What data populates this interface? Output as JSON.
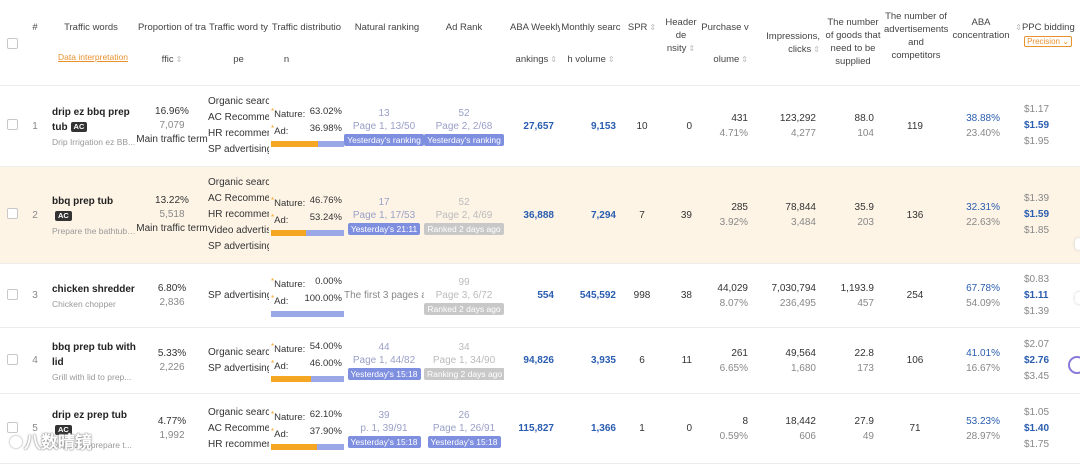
{
  "header": {
    "index": "#",
    "traffic_words": "Traffic words",
    "data_interpretation": "Data interpretation",
    "proportion_a": "Proportion of tra",
    "proportion_b": "ffic",
    "word_type_a": "Traffic word ty",
    "word_type_b": "pe",
    "distribution_a": "Traffic distributio",
    "distribution_b": "n",
    "natural_ranking": "Natural ranking",
    "ad_rank": "Ad Rank",
    "aba_weekly_a": "ABA Weekly R",
    "aba_weekly_b": "ankings",
    "monthly_a": "Monthly searc",
    "monthly_b": "h volume",
    "spr": "SPR",
    "header_density_a": "Header de",
    "header_density_b": "nsity",
    "purchase_a": "Purchase v",
    "purchase_b": "olume",
    "impressions": "Impressions, clicks",
    "num_goods": "The number of goods that need to be supplied",
    "num_ads": "The number of advertisements and competitors",
    "aba_conc": "ABA concentration",
    "ppc": "PPC bidding",
    "precision": "Precision"
  },
  "rows": [
    {
      "n": "1",
      "kw_line1": "drip ez bbq prep",
      "kw_line2": "tub",
      "ac": "AC",
      "sub": "Drip Irrigation ez BB...",
      "pct": "16.96%",
      "traffic": "7,079",
      "main": "Main traffic term",
      "types": [
        "Organic search",
        "AC Recommend",
        "HR recommend",
        "SP advertising"
      ],
      "nat_pct": "63.02%",
      "ad_pct": "36.98%",
      "nat_frac": 0.6302,
      "nr_top": "13",
      "nr_page": "Page 1, 13/50",
      "nr_tag": "Yesterday's ranking",
      "nr_tag_color": "blue",
      "ar_top": "52",
      "ar_page": "Page 2, 2/68",
      "ar_tag": "Yesterday's ranking",
      "ar_tag_color": "blue",
      "ar_muted": false,
      "aba": "27,657",
      "monthly": "9,153",
      "spr": "10",
      "header_density": "0",
      "purchase": "431",
      "purchase_pct": "4.71%",
      "impressions": "123,292",
      "clicks": "4,277",
      "goods_a": "88.0",
      "goods_b": "104",
      "ads": "119",
      "conc_a": "38.88%",
      "conc_b": "23.40%",
      "ppc": [
        "$1.17",
        "$1.59",
        "$1.95"
      ]
    },
    {
      "n": "2",
      "kw_line1": "bbq prep tub",
      "kw_line2": "",
      "ac": "AC",
      "sub": "Prepare the bathtub ...",
      "pct": "13.22%",
      "traffic": "5,518",
      "main": "Main traffic term",
      "types": [
        "Organic search",
        "AC Recommend",
        "HR recommend",
        "Video advertising",
        "SP advertising"
      ],
      "nat_pct": "46.76%",
      "ad_pct": "53.24%",
      "nat_frac": 0.4676,
      "nr_top": "17",
      "nr_page": "Page 1, 17/53",
      "nr_tag": "Yesterday's 21:11",
      "nr_tag_color": "blue",
      "ar_top": "52",
      "ar_page": "Page 2, 4/69",
      "ar_tag": "Ranked 2 days ago",
      "ar_tag_color": "gray",
      "ar_muted": true,
      "aba": "36,888",
      "monthly": "7,294",
      "spr": "7",
      "header_density": "39",
      "purchase": "285",
      "purchase_pct": "3.92%",
      "impressions": "78,844",
      "clicks": "3,484",
      "goods_a": "35.9",
      "goods_b": "203",
      "ads": "136",
      "conc_a": "32.31%",
      "conc_b": "22.63%",
      "ppc": [
        "$1.39",
        "$1.59",
        "$1.85"
      ]
    },
    {
      "n": "3",
      "kw_line1": "chicken shredder",
      "kw_line2": "",
      "ac": "",
      "sub": "Chicken chopper",
      "pct": "6.80%",
      "traffic": "2,836",
      "main": "",
      "types": [
        "SP advertising"
      ],
      "nat_pct": "0.00%",
      "ad_pct": "100.00%",
      "nat_frac": 0.0,
      "nr_top": "",
      "nr_page": "The first 3 pages are",
      "nr_tag": "",
      "nr_tag_color": "gray",
      "ar_top": "99",
      "ar_page": "Page 3, 6/72",
      "ar_tag": "Ranked 2 days ago",
      "ar_tag_color": "gray",
      "ar_muted": true,
      "aba": "554",
      "monthly": "545,592",
      "spr": "998",
      "header_density": "38",
      "purchase": "44,029",
      "purchase_pct": "8.07%",
      "impressions": "7,030,794",
      "clicks": "236,495",
      "goods_a": "1,193.9",
      "goods_b": "457",
      "ads": "254",
      "conc_a": "67.78%",
      "conc_b": "54.09%",
      "ppc": [
        "$0.83",
        "$1.11",
        "$1.39"
      ]
    },
    {
      "n": "4",
      "kw_line1": "bbq prep tub with",
      "kw_line2": "lid",
      "ac": "",
      "sub": "Grill with lid to prep...",
      "pct": "5.33%",
      "traffic": "2,226",
      "main": "",
      "types": [
        "Organic search",
        "SP advertising"
      ],
      "nat_pct": "54.00%",
      "ad_pct": "46.00%",
      "nat_frac": 0.54,
      "nr_top": "44",
      "nr_page": "Page 1, 44/82",
      "nr_tag": "Yesterday's 15:18",
      "nr_tag_color": "blue",
      "ar_top": "34",
      "ar_page": "Page 1, 34/90",
      "ar_tag": "Ranking 2 days ago",
      "ar_tag_color": "gray",
      "ar_muted": true,
      "aba": "94,826",
      "monthly": "3,935",
      "spr": "6",
      "header_density": "11",
      "purchase": "261",
      "purchase_pct": "6.65%",
      "impressions": "49,564",
      "clicks": "1,680",
      "goods_a": "22.8",
      "goods_b": "173",
      "ads": "106",
      "conc_a": "41.01%",
      "conc_b": "16.67%",
      "ppc": [
        "$2.07",
        "$2.76",
        "$3.45"
      ]
    },
    {
      "n": "5",
      "kw_line1": "drip ez prep tub",
      "kw_line2": "",
      "ac": "AC",
      "sub": "Drip ez to prepare t...",
      "pct": "4.77%",
      "traffic": "1,992",
      "main": "",
      "types": [
        "Organic search",
        "AC Recommend",
        "HR recommend"
      ],
      "nat_pct": "62.10%",
      "ad_pct": "37.90%",
      "nat_frac": 0.621,
      "nr_top": "39",
      "nr_page": "p. 1, 39/91",
      "nr_tag": "Yesterday's 15:18",
      "nr_tag_color": "blue",
      "ar_top": "26",
      "ar_page": "Page 1, 26/91",
      "ar_tag": "Yesterday's 15:18",
      "ar_tag_color": "blue",
      "ar_muted": false,
      "aba": "115,827",
      "monthly": "1,366",
      "spr": "1",
      "header_density": "0",
      "purchase": "8",
      "purchase_pct": "0.59%",
      "impressions": "18,442",
      "clicks": "606",
      "goods_a": "27.9",
      "goods_b": "49",
      "ads": "71",
      "conc_a": "53.23%",
      "conc_b": "28.97%",
      "ppc": [
        "$1.05",
        "$1.40",
        "$1.75"
      ]
    }
  ],
  "labels": {
    "nature": "Nature:",
    "ad": "Ad:"
  },
  "watermark": "八数晴镜"
}
